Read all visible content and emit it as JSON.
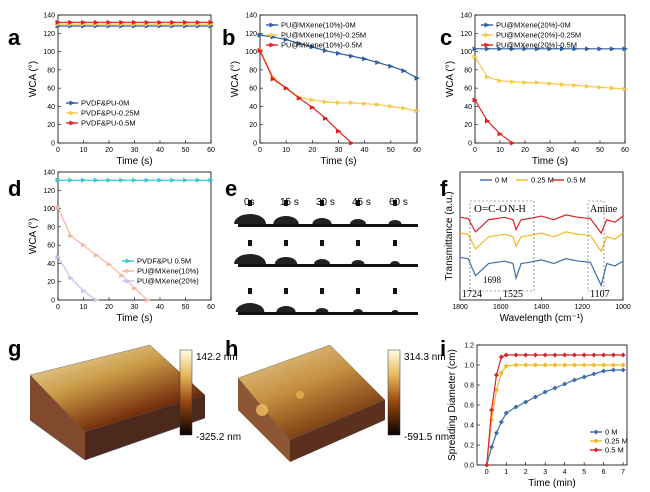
{
  "panel_letters": [
    "a",
    "b",
    "c",
    "d",
    "e",
    "f",
    "g",
    "h",
    "i"
  ],
  "chart_data": [
    {
      "id": "a",
      "type": "line",
      "xlabel": "Time (s)",
      "ylabel": "WCA (°)",
      "xlim": [
        0,
        60
      ],
      "ylim": [
        0,
        140
      ],
      "xticks": [
        0,
        10,
        20,
        30,
        40,
        50,
        60
      ],
      "yticks": [
        0,
        20,
        40,
        60,
        80,
        100,
        120,
        140
      ],
      "legend_position": "bottom-left",
      "series": [
        {
          "name": "PVDF&PU-0M",
          "color": "#2f5f9e",
          "marker": "triangle-right",
          "x": [
            0,
            5,
            10,
            15,
            20,
            25,
            30,
            35,
            40,
            45,
            50,
            55,
            60
          ],
          "y": [
            128,
            128,
            128,
            128,
            128,
            128,
            128,
            128,
            128,
            128,
            128,
            128,
            128
          ]
        },
        {
          "name": "PVDF&PU-0.25M",
          "color": "#f7c948",
          "marker": "triangle-right",
          "x": [
            0,
            5,
            10,
            15,
            20,
            25,
            30,
            35,
            40,
            45,
            50,
            55,
            60
          ],
          "y": [
            130,
            130,
            130,
            130,
            130,
            130,
            130,
            130,
            130,
            130,
            130,
            130,
            130
          ]
        },
        {
          "name": "PVDF&PU-0.5M",
          "color": "#e21f1f",
          "marker": "triangle-right",
          "x": [
            0,
            5,
            10,
            15,
            20,
            25,
            30,
            35,
            40,
            45,
            50,
            55,
            60
          ],
          "y": [
            132,
            132,
            132,
            132,
            132,
            132,
            132,
            132,
            132,
            132,
            132,
            132,
            132
          ]
        }
      ]
    },
    {
      "id": "b",
      "type": "line",
      "xlabel": "Time (s)",
      "ylabel": "WCA (°)",
      "xlim": [
        0,
        60
      ],
      "ylim": [
        0,
        140
      ],
      "xticks": [
        0,
        10,
        20,
        30,
        40,
        50,
        60
      ],
      "yticks": [
        0,
        20,
        40,
        60,
        80,
        100,
        120,
        140
      ],
      "legend_position": "top",
      "series": [
        {
          "name": "PU@MXene(10%)-0M",
          "color": "#2f5f9e",
          "marker": "triangle-right",
          "x": [
            0,
            5,
            10,
            15,
            20,
            25,
            30,
            35,
            40,
            45,
            50,
            55,
            60
          ],
          "y": [
            118,
            116,
            113,
            109,
            105,
            101,
            98,
            95,
            92,
            88,
            84,
            79,
            71
          ]
        },
        {
          "name": "PU@MXene(10%)-0.25M",
          "color": "#f7c948",
          "marker": "triangle-right",
          "x": [
            0,
            5,
            10,
            15,
            20,
            25,
            30,
            35,
            40,
            45,
            50,
            55,
            60
          ],
          "y": [
            102,
            72,
            60,
            50,
            47,
            45,
            44,
            44,
            43,
            42,
            40,
            38,
            35
          ]
        },
        {
          "name": "PU@MXene(10%)-0.5M",
          "color": "#e21f1f",
          "marker": "triangle-right",
          "x": [
            0,
            5,
            10,
            15,
            20,
            25,
            30,
            35
          ],
          "y": [
            101,
            70,
            60,
            49,
            39,
            27,
            13,
            0
          ]
        }
      ]
    },
    {
      "id": "c",
      "type": "line",
      "xlabel": "Time (s)",
      "ylabel": "WCA (°)",
      "xlim": [
        0,
        60
      ],
      "ylim": [
        0,
        140
      ],
      "xticks": [
        0,
        10,
        20,
        30,
        40,
        50,
        60
      ],
      "yticks": [
        0,
        20,
        40,
        60,
        80,
        100,
        120,
        140
      ],
      "legend_position": "top",
      "series": [
        {
          "name": "PU@MXene(20%)-0M",
          "color": "#2f5f9e",
          "marker": "triangle-right",
          "x": [
            0,
            5,
            10,
            15,
            20,
            25,
            30,
            35,
            40,
            45,
            50,
            55,
            60
          ],
          "y": [
            103,
            103,
            103,
            103,
            103,
            103,
            103,
            103,
            103,
            103,
            103,
            103,
            103
          ]
        },
        {
          "name": "PU@MXene(20%)-0.25M",
          "color": "#f7c948",
          "marker": "triangle-right",
          "x": [
            0,
            5,
            10,
            15,
            20,
            25,
            30,
            35,
            40,
            45,
            50,
            55,
            60
          ],
          "y": [
            94,
            72,
            68,
            67,
            66,
            66,
            65,
            64,
            63,
            62,
            61,
            60,
            59
          ]
        },
        {
          "name": "PU@MXene(20%)-0.5M",
          "color": "#e21f1f",
          "marker": "triangle-right",
          "x": [
            0,
            5,
            10,
            15
          ],
          "y": [
            47,
            24,
            10,
            0
          ]
        }
      ]
    },
    {
      "id": "d",
      "type": "line",
      "xlabel": "Time (s)",
      "ylabel": "WCA (°)",
      "xlim": [
        0,
        60
      ],
      "ylim": [
        0,
        140
      ],
      "xticks": [
        0,
        10,
        20,
        30,
        40,
        50,
        60
      ],
      "yticks": [
        0,
        20,
        40,
        60,
        80,
        100,
        120,
        140
      ],
      "legend_position": "bottom-right",
      "series": [
        {
          "name": "PVDF&PU   0.5M",
          "color": "#3cc7cf",
          "marker": "triangle-right",
          "x": [
            0,
            5,
            10,
            15,
            20,
            25,
            30,
            35,
            40,
            45,
            50,
            55,
            60
          ],
          "y": [
            131,
            131,
            131,
            131,
            131,
            131,
            131,
            131,
            131,
            131,
            131,
            131,
            131
          ]
        },
        {
          "name": "PU@MXene(10%)",
          "color": "#f6b7a0",
          "marker": "triangle-right",
          "x": [
            0,
            5,
            10,
            15,
            20,
            25,
            30,
            35
          ],
          "y": [
            101,
            70,
            60,
            49,
            39,
            27,
            13,
            0
          ]
        },
        {
          "name": "PU@MXene(20%)",
          "color": "#c9c2e8",
          "marker": "triangle-right",
          "x": [
            0,
            5,
            10,
            15
          ],
          "y": [
            47,
            24,
            10,
            0
          ]
        }
      ]
    },
    {
      "id": "f",
      "type": "line",
      "xlabel": "Wavelength (cm⁻¹)",
      "ylabel": "Transmittance (a.u.)",
      "xlim": [
        1800,
        1000
      ],
      "x_reversed": true,
      "xticks": [
        1800,
        1600,
        1400,
        1200,
        1000
      ],
      "legend_position": "top",
      "annotations": [
        "O=C-O",
        "N-H",
        "Amine",
        "1698",
        "1724",
        "1525",
        "1107"
      ],
      "series": [
        {
          "name": "0 M",
          "color": "#3e6da8",
          "x": [
            1800,
            1760,
            1724,
            1698,
            1660,
            1620,
            1580,
            1540,
            1525,
            1500,
            1460,
            1400,
            1340,
            1280,
            1220,
            1160,
            1107,
            1080,
            1040,
            1000
          ],
          "y": [
            0.35,
            0.34,
            0.2,
            0.24,
            0.3,
            0.31,
            0.32,
            0.3,
            0.18,
            0.3,
            0.31,
            0.33,
            0.3,
            0.34,
            0.32,
            0.31,
            0.12,
            0.3,
            0.28,
            0.32
          ]
        },
        {
          "name": "0.25 M",
          "color": "#f2b822",
          "x": [
            1800,
            1760,
            1724,
            1698,
            1660,
            1620,
            1580,
            1540,
            1525,
            1500,
            1460,
            1400,
            1340,
            1280,
            1220,
            1160,
            1107,
            1080,
            1040,
            1000
          ],
          "y": [
            0.55,
            0.54,
            0.42,
            0.46,
            0.52,
            0.53,
            0.54,
            0.52,
            0.44,
            0.52,
            0.53,
            0.55,
            0.52,
            0.56,
            0.54,
            0.53,
            0.4,
            0.52,
            0.5,
            0.55
          ]
        },
        {
          "name": "0.5 M",
          "color": "#d62628",
          "x": [
            1800,
            1760,
            1724,
            1698,
            1660,
            1620,
            1580,
            1540,
            1525,
            1500,
            1460,
            1400,
            1340,
            1280,
            1220,
            1160,
            1107,
            1080,
            1040,
            1000
          ],
          "y": [
            0.68,
            0.67,
            0.56,
            0.6,
            0.66,
            0.67,
            0.68,
            0.66,
            0.58,
            0.66,
            0.67,
            0.69,
            0.66,
            0.7,
            0.68,
            0.67,
            0.55,
            0.66,
            0.64,
            0.69
          ]
        }
      ]
    },
    {
      "id": "i",
      "type": "line",
      "xlabel": "Time (min)",
      "ylabel": "Spreading Diameter (cm)",
      "xlim": [
        -0.5,
        7.2
      ],
      "ylim": [
        0,
        1.2
      ],
      "xticks": [
        0,
        1,
        2,
        3,
        4,
        5,
        6,
        7
      ],
      "yticks": [
        0,
        0.2,
        0.4,
        0.6,
        0.8,
        1.0,
        1.2
      ],
      "legend_position": "bottom-right",
      "series": [
        {
          "name": "0 M",
          "color": "#3e6da8",
          "marker": "diamond",
          "x": [
            0,
            0.25,
            0.5,
            0.75,
            1,
            1.5,
            2,
            2.5,
            3,
            3.5,
            4,
            4.5,
            5,
            5.5,
            6,
            6.5,
            7
          ],
          "y": [
            0,
            0.18,
            0.32,
            0.43,
            0.52,
            0.58,
            0.63,
            0.68,
            0.73,
            0.77,
            0.81,
            0.85,
            0.88,
            0.91,
            0.94,
            0.95,
            0.95
          ]
        },
        {
          "name": "0.25 M",
          "color": "#f2b822",
          "marker": "diamond",
          "x": [
            0,
            0.25,
            0.5,
            0.75,
            1,
            1.5,
            2,
            2.5,
            3,
            3.5,
            4,
            4.5,
            5,
            5.5,
            6,
            6.5,
            7
          ],
          "y": [
            0,
            0.45,
            0.75,
            0.92,
            0.99,
            1.0,
            1.0,
            1.0,
            1.0,
            1.0,
            1.0,
            1.0,
            1.0,
            1.0,
            1.0,
            1.0,
            1.0
          ]
        },
        {
          "name": "0.5 M",
          "color": "#d62628",
          "marker": "diamond",
          "x": [
            0,
            0.25,
            0.5,
            0.75,
            1,
            1.5,
            2,
            2.5,
            3,
            3.5,
            4,
            4.5,
            5,
            5.5,
            6,
            6.5,
            7
          ],
          "y": [
            0,
            0.55,
            0.9,
            1.08,
            1.1,
            1.1,
            1.1,
            1.1,
            1.1,
            1.1,
            1.1,
            1.1,
            1.1,
            1.1,
            1.1,
            1.1,
            1.1
          ]
        }
      ]
    }
  ],
  "panel_e": {
    "time_labels": [
      "0s",
      "15 s",
      "30 s",
      "45 s",
      "60 s"
    ]
  },
  "panel_g": {
    "scale_max": "142.2 nm",
    "scale_min": "-325.2 nm"
  },
  "panel_h": {
    "scale_max": "314.3 nm",
    "scale_min": "-591.5 nm"
  }
}
